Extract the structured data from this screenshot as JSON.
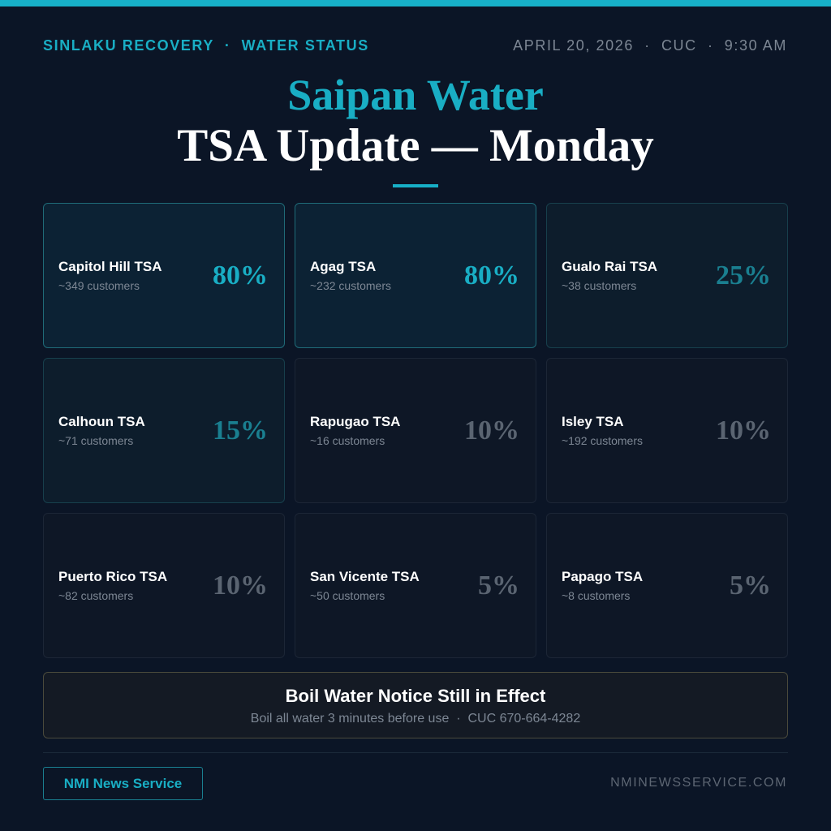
{
  "header": {
    "kicker": "SINLAKU RECOVERY  ·  WATER STATUS",
    "dateline": "APRIL 20, 2026  ·  CUC  ·  9:30 AM",
    "title": "Saipan Water",
    "subtitle": "TSA Update — Monday"
  },
  "cards": [
    {
      "name": "Capitol Hill TSA",
      "customers": "~349 customers",
      "percent": "80%"
    },
    {
      "name": "Agag TSA",
      "customers": "~232 customers",
      "percent": "80%"
    },
    {
      "name": "Gualo Rai TSA",
      "customers": "~38 customers",
      "percent": "25%"
    },
    {
      "name": "Calhoun TSA",
      "customers": "~71 customers",
      "percent": "15%"
    },
    {
      "name": "Rapugao TSA",
      "customers": "~16 customers",
      "percent": "10%"
    },
    {
      "name": "Isley TSA",
      "customers": "~192 customers",
      "percent": "10%"
    },
    {
      "name": "Puerto Rico TSA",
      "customers": "~82 customers",
      "percent": "10%"
    },
    {
      "name": "San Vicente TSA",
      "customers": "~50 customers",
      "percent": "5%"
    },
    {
      "name": "Papago TSA",
      "customers": "~8 customers",
      "percent": "5%"
    }
  ],
  "notice": {
    "title": "Boil Water Notice Still in Effect",
    "text": "Boil all water 3 minutes before use  ·  CUC 670-664-4282"
  },
  "footer": {
    "button": "NMI News Service",
    "site": "NMINEWSSERVICE.COM"
  }
}
